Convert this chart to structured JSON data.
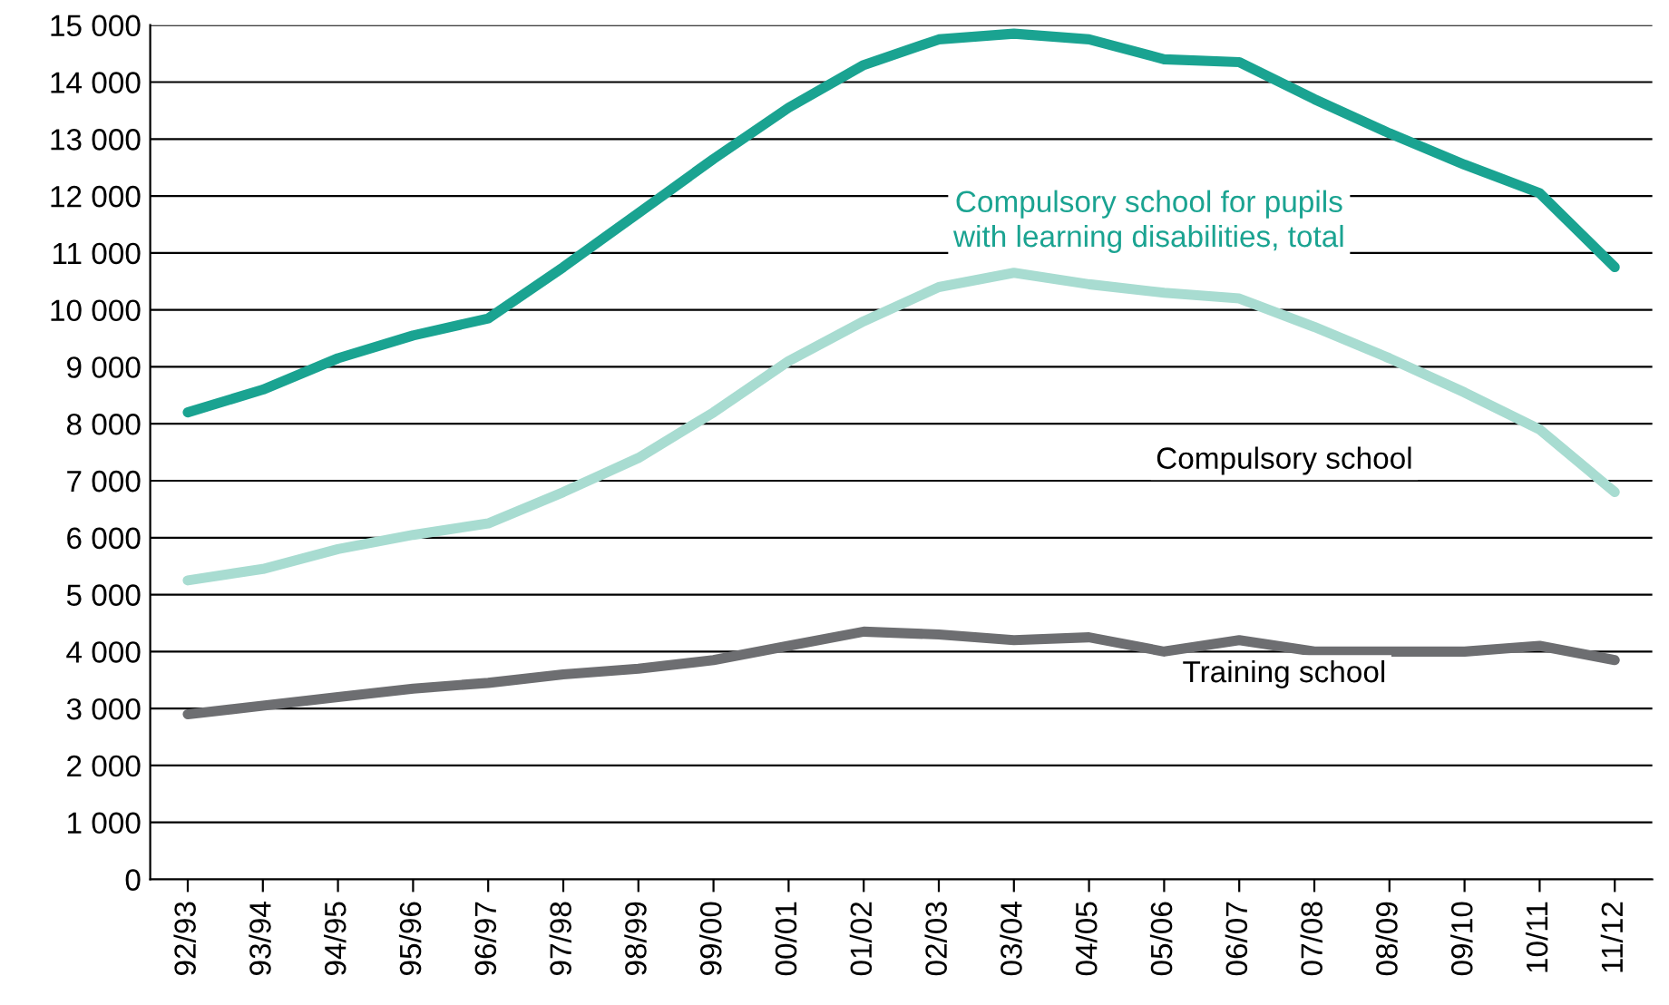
{
  "chart_data": {
    "type": "line",
    "categories": [
      "92/93",
      "93/94",
      "94/95",
      "95/96",
      "96/97",
      "97/98",
      "98/99",
      "99/00",
      "00/01",
      "01/02",
      "02/03",
      "03/04",
      "04/05",
      "05/06",
      "06/07",
      "07/08",
      "08/09",
      "09/10",
      "10/11",
      "11/12"
    ],
    "series": [
      {
        "name": "Compulsory school for pupils\nwith learning disabilities, total",
        "color": "#1aa391",
        "values": [
          8200,
          8600,
          9150,
          9550,
          9850,
          10750,
          11700,
          12650,
          13550,
          14300,
          14750,
          14850,
          14750,
          14400,
          14350,
          13700,
          13100,
          12550,
          12050,
          10750
        ]
      },
      {
        "name": "Compulsory school",
        "color": "#a8dcd1",
        "values": [
          5250,
          5450,
          5800,
          6050,
          6250,
          6800,
          7400,
          8200,
          9100,
          9800,
          10400,
          10650,
          10450,
          10300,
          10200,
          9700,
          9150,
          8550,
          7900,
          6800
        ]
      },
      {
        "name": "Training school",
        "color": "#6d6e71",
        "values": [
          2900,
          3050,
          3200,
          3350,
          3450,
          3600,
          3700,
          3850,
          4100,
          4350,
          4300,
          4200,
          4250,
          4000,
          4200,
          4000,
          4000,
          4000,
          4100,
          3850
        ]
      }
    ],
    "ylim": [
      0,
      15000
    ],
    "yticks": [
      0,
      {
        "value": 1000,
        "label": "1 000"
      },
      {
        "value": 2000,
        "label": "2 000"
      },
      {
        "value": 3000,
        "label": "3 000"
      },
      {
        "value": 4000,
        "label": "4 000"
      },
      {
        "value": 5000,
        "label": "5 000"
      },
      {
        "value": 6000,
        "label": "6 000"
      },
      {
        "value": 7000,
        "label": "7 000"
      },
      {
        "value": 8000,
        "label": "8 000"
      },
      {
        "value": 9000,
        "label": "9 000"
      },
      {
        "value": 10000,
        "label": "10 000"
      },
      {
        "value": 11000,
        "label": "11 000"
      },
      {
        "value": 12000,
        "label": "12 000"
      },
      {
        "value": 13000,
        "label": "13 000"
      },
      {
        "value": 14000,
        "label": "14 000"
      },
      {
        "value": 15000,
        "label": "15 000"
      }
    ],
    "grid": "y",
    "legend": false,
    "marker": "none",
    "line_style": "solid"
  }
}
